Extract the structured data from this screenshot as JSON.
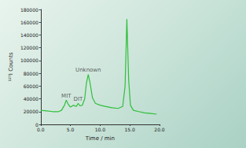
{
  "chart_data": {
    "type": "line",
    "x_label": "Time / min",
    "y_label": "¹²⁷I Counts",
    "x": [
      0,
      1,
      2,
      3,
      3.5,
      4.0,
      4.3,
      4.6,
      5.0,
      5.5,
      6.0,
      6.3,
      6.6,
      7.0,
      7.4,
      7.7,
      8.0,
      8.3,
      8.7,
      9.2,
      10,
      11,
      12,
      13,
      13.8,
      14.2,
      14.5,
      14.8,
      15.1,
      15.6,
      16.5,
      17.5,
      18.5,
      19.5
    ],
    "values": [
      22000,
      21000,
      20000,
      20000,
      22000,
      30000,
      38000,
      32000,
      27000,
      30000,
      28000,
      33000,
      29000,
      30000,
      40000,
      65000,
      78000,
      65000,
      42000,
      33000,
      30000,
      28000,
      26000,
      25000,
      28000,
      60000,
      165000,
      70000,
      30000,
      22000,
      20000,
      18000,
      17000,
      16000
    ],
    "color": "#2fbf3a",
    "xlim": [
      0,
      20
    ],
    "xticks": [
      {
        "value": 0,
        "label": "0.0"
      },
      {
        "value": 5,
        "label": "5.0"
      },
      {
        "value": 10,
        "label": "10.0"
      },
      {
        "value": 15,
        "label": "15.0"
      },
      {
        "value": 20,
        "label": "20.0"
      }
    ],
    "ylim": [
      0,
      180000
    ],
    "yticks": [
      0,
      20000,
      40000,
      60000,
      80000,
      100000,
      120000,
      140000,
      160000,
      180000
    ],
    "annotations": [
      {
        "text": "MIT",
        "x": 4.3,
        "y": 38000
      },
      {
        "text": "DIT",
        "x": 6.3,
        "y": 33000
      },
      {
        "text": "Unknown",
        "x": 8.0,
        "y": 78000
      }
    ],
    "grid": false
  }
}
